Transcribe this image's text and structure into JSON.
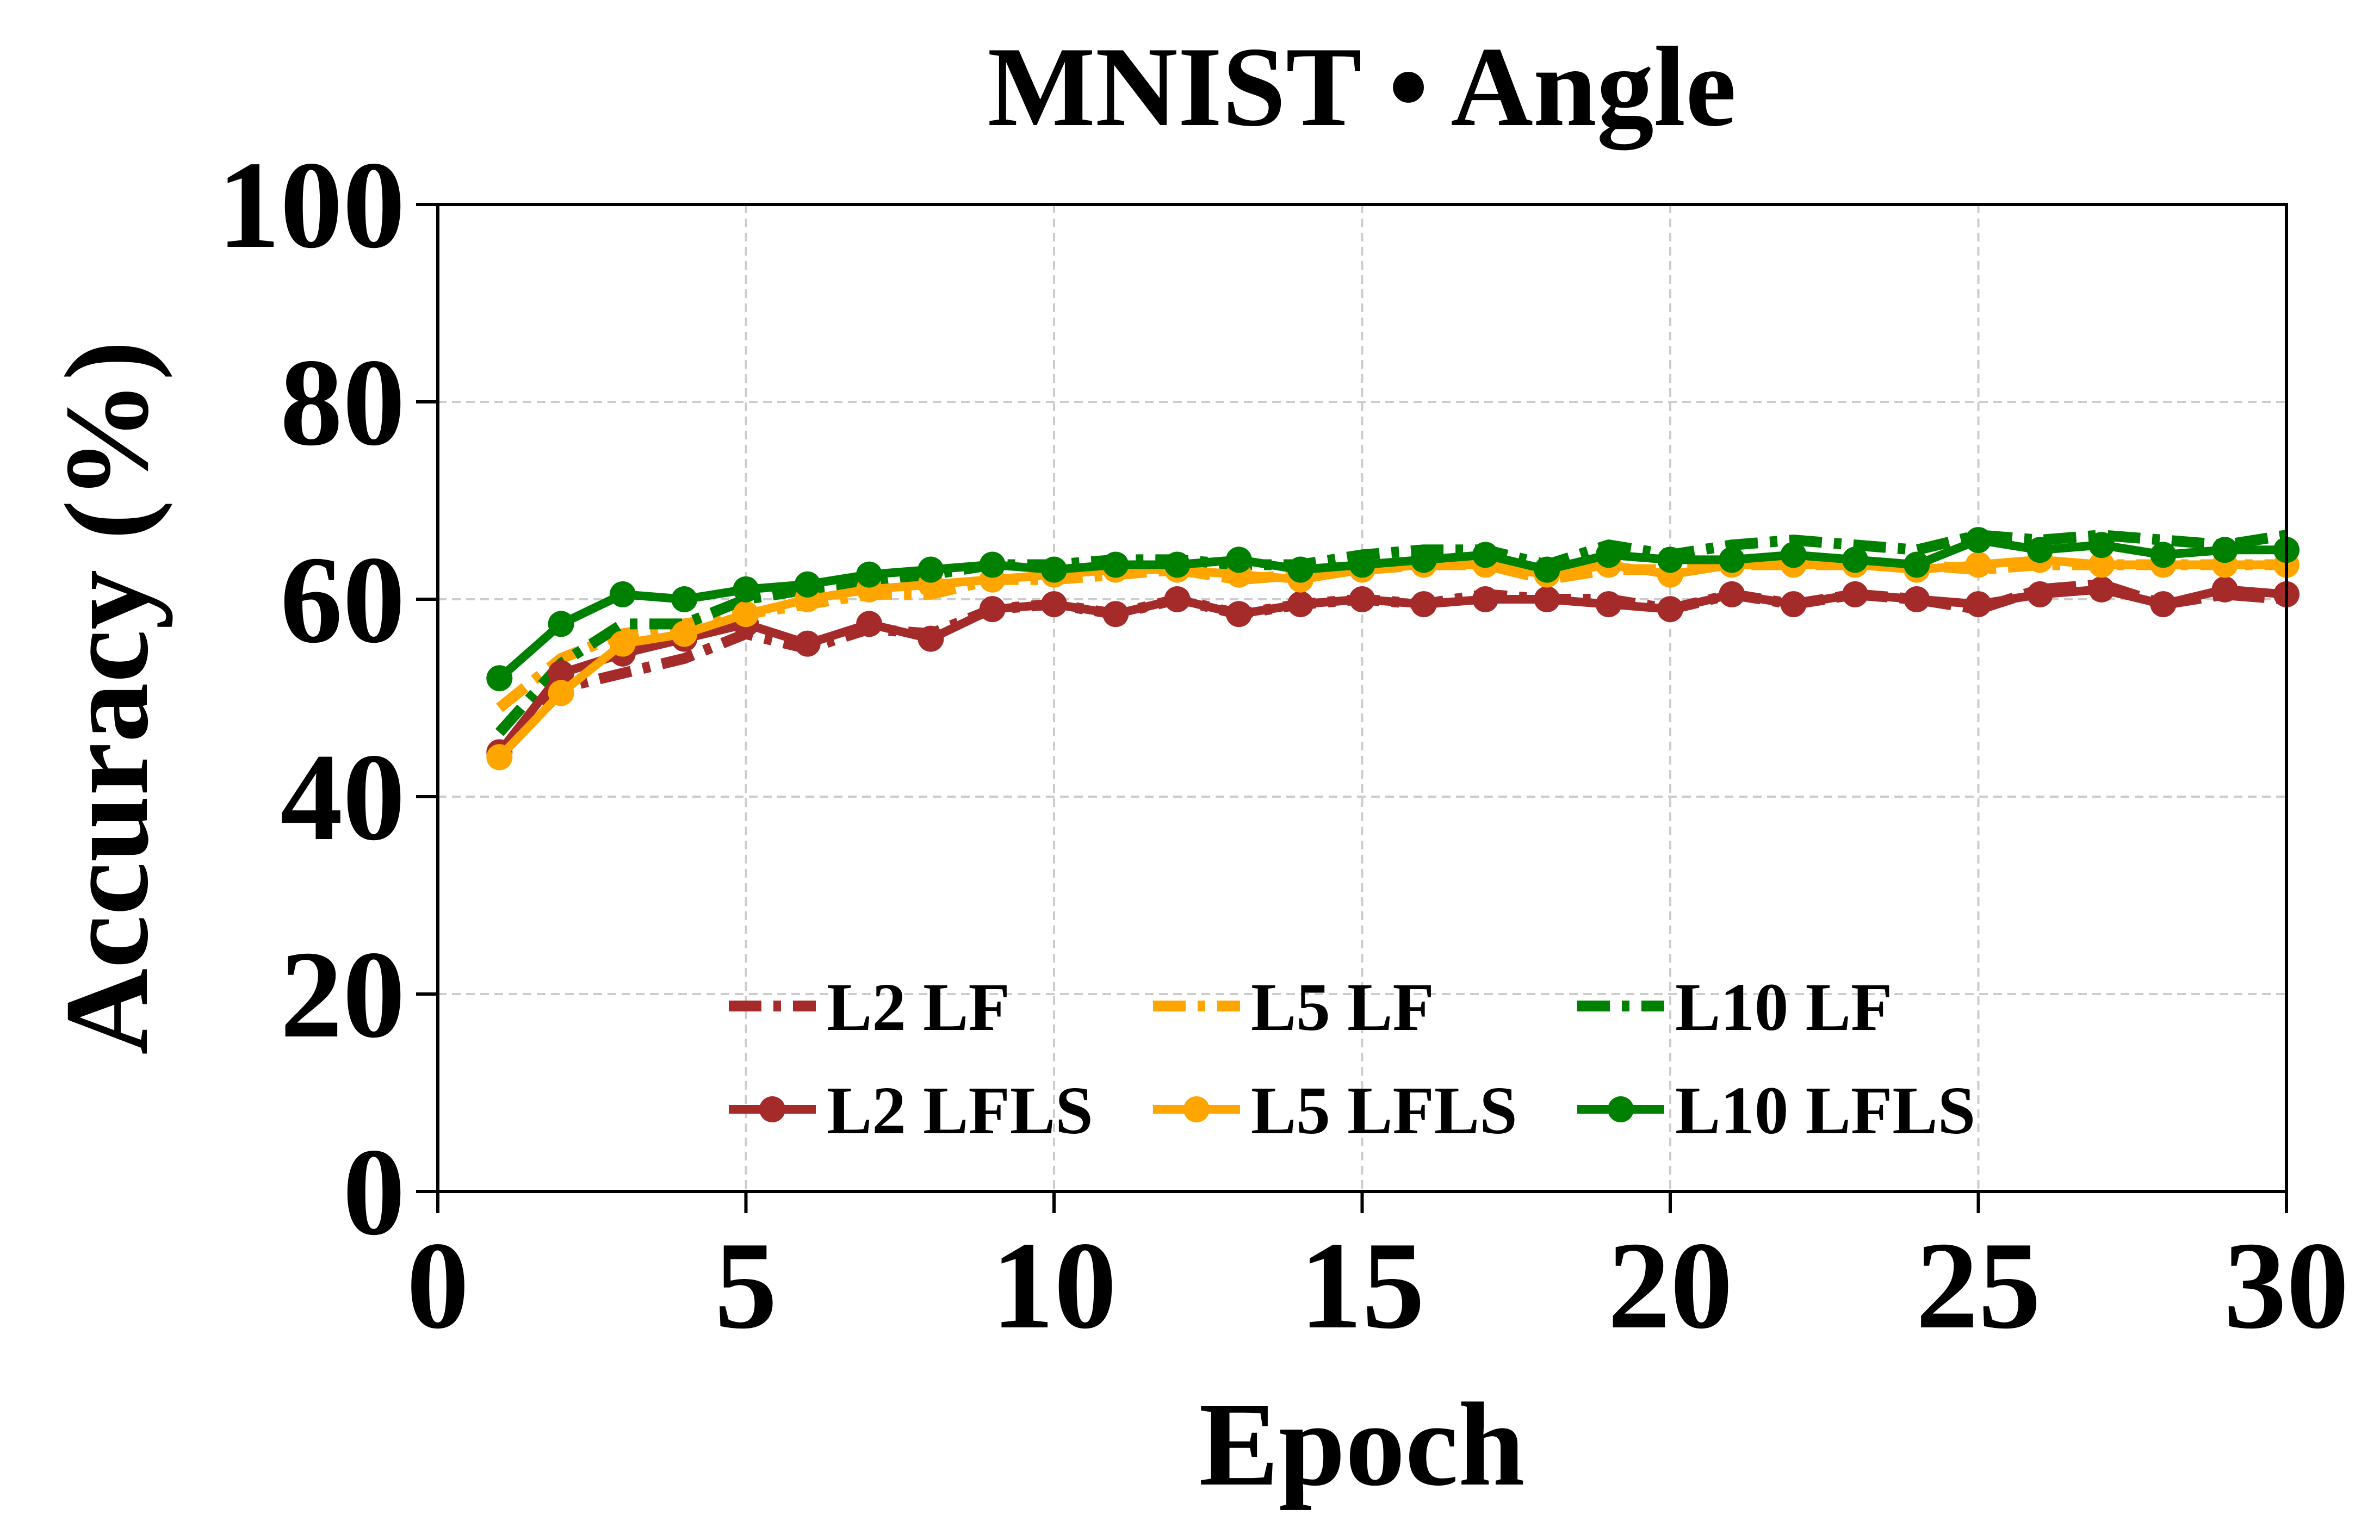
{
  "chart_data": {
    "type": "line",
    "title": "MNIST • Angle",
    "xlabel": "Epoch",
    "ylabel": "Accuracy (%)",
    "xlim": [
      0,
      30
    ],
    "ylim": [
      0,
      100
    ],
    "xticks": [
      "0",
      "5",
      "10",
      "15",
      "20",
      "25",
      "30"
    ],
    "yticks": [
      "0",
      "20",
      "40",
      "60",
      "80",
      "100"
    ],
    "grid": true,
    "legend_position": "lower-center",
    "x": [
      1,
      2,
      3,
      4,
      5,
      6,
      7,
      8,
      9,
      10,
      11,
      12,
      13,
      14,
      15,
      16,
      17,
      18,
      19,
      20,
      21,
      22,
      23,
      24,
      25,
      26,
      27,
      28,
      29,
      30
    ],
    "series": [
      {
        "name": "L2 LF",
        "color": "#a52a2a",
        "style": "dashed",
        "marker": false,
        "values": [
          44.5,
          51,
          52.5,
          54,
          56.5,
          55,
          57,
          56.5,
          59,
          59.5,
          58.5,
          60,
          58.5,
          59.5,
          60,
          59.5,
          60.5,
          60,
          60,
          59,
          60.5,
          59.5,
          60.5,
          60,
          59,
          61,
          61.5,
          59.5,
          60.5,
          60
        ]
      },
      {
        "name": "L5 LF",
        "color": "#ffa500",
        "style": "dashed",
        "marker": false,
        "values": [
          49,
          54,
          56.5,
          57.5,
          58.5,
          59.5,
          60.5,
          60.5,
          62,
          62,
          62.5,
          63,
          62,
          62.5,
          63,
          63.5,
          63.5,
          62,
          63,
          63,
          63.5,
          63.5,
          63.5,
          63.5,
          63,
          63.5,
          63.5,
          63.5,
          63.5,
          63.5
        ]
      },
      {
        "name": "L10 LF",
        "color": "#008000",
        "style": "dashed",
        "marker": false,
        "values": [
          46.5,
          53.5,
          57.5,
          57.5,
          60,
          61,
          61.5,
          62.5,
          63.5,
          63.5,
          64,
          64,
          63.5,
          63.5,
          64.5,
          65,
          65,
          63.5,
          65.5,
          64.5,
          65.5,
          66,
          65.5,
          65,
          66.5,
          66,
          66.5,
          66,
          65.5,
          66.5
        ]
      },
      {
        "name": "L2 LFLS",
        "color": "#a52a2a",
        "style": "solid",
        "marker": true,
        "values": [
          44.5,
          52.5,
          54.5,
          56,
          57.5,
          55.5,
          57.5,
          56,
          59,
          59.5,
          58.5,
          60,
          58.5,
          59.5,
          60,
          59.5,
          60,
          60,
          59.5,
          59,
          60.5,
          59.5,
          60.5,
          60,
          59.5,
          60.5,
          61,
          59.5,
          61,
          60.5
        ]
      },
      {
        "name": "L5 LFLS",
        "color": "#ffa500",
        "style": "solid",
        "marker": true,
        "values": [
          44,
          50.5,
          55.5,
          56.5,
          58.5,
          60,
          61,
          61.5,
          62,
          62.5,
          63,
          63,
          62.5,
          62,
          63,
          63.5,
          63.5,
          62.5,
          63.5,
          62.5,
          63.5,
          63.5,
          63.5,
          63,
          63.5,
          64,
          63.5,
          63.5,
          63.5,
          63.5
        ]
      },
      {
        "name": "L10 LFLS",
        "color": "#008000",
        "style": "solid",
        "marker": true,
        "values": [
          52,
          57.5,
          60.5,
          60,
          61,
          61.5,
          62.5,
          63,
          63.5,
          63,
          63.5,
          63.5,
          64,
          63,
          63.5,
          64,
          64.5,
          63,
          64.5,
          64,
          64,
          64.5,
          64,
          63.5,
          66,
          65,
          65.5,
          64.5,
          65,
          65
        ]
      }
    ]
  }
}
